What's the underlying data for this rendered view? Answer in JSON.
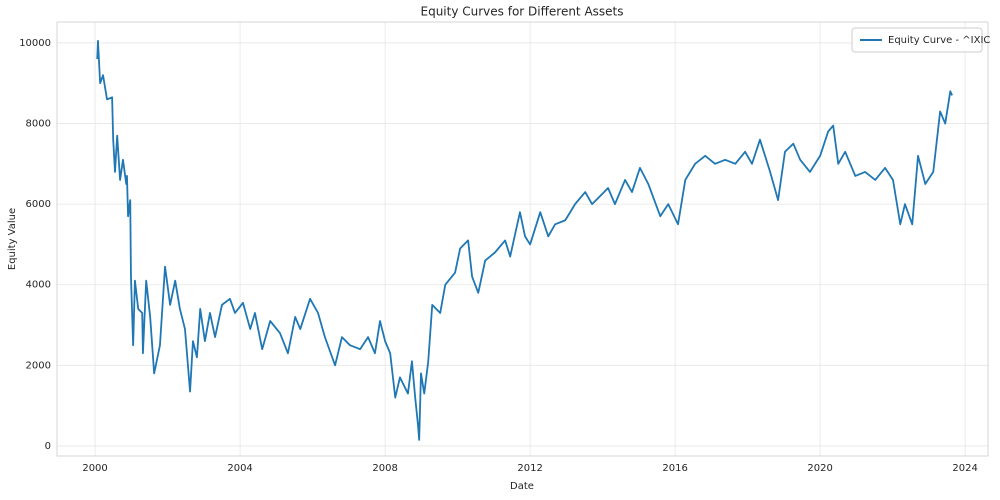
{
  "chart_data": {
    "type": "line",
    "title": "Equity Curves for Different Assets",
    "xlabel": "Date",
    "ylabel": "Equity Value",
    "x": [
      2000.06,
      2000.08,
      2000.14,
      2000.22,
      2000.33,
      2000.47,
      2000.5,
      2000.55,
      2000.61,
      2000.69,
      2000.77,
      2000.86,
      2000.88,
      2000.91,
      2000.97,
      2000.99,
      2001.05,
      2001.1,
      2001.19,
      2001.3,
      2001.32,
      2001.41,
      2001.52,
      2001.63,
      2001.79,
      2001.93,
      2002.07,
      2002.21,
      2002.34,
      2002.48,
      2002.62,
      2002.7,
      2002.81,
      2002.9,
      2003.03,
      2003.17,
      2003.31,
      2003.5,
      2003.72,
      2003.86,
      2004.08,
      2004.28,
      2004.41,
      2004.61,
      2004.83,
      2005.1,
      2005.32,
      2005.52,
      2005.66,
      2005.93,
      2006.15,
      2006.34,
      2006.62,
      2006.81,
      2007.03,
      2007.31,
      2007.53,
      2007.72,
      2007.86,
      2008.0,
      2008.14,
      2008.28,
      2008.41,
      2008.63,
      2008.74,
      2008.83,
      2008.91,
      2008.94,
      2008.99,
      2009.08,
      2009.19,
      2009.3,
      2009.52,
      2009.66,
      2009.93,
      2010.07,
      2010.29,
      2010.4,
      2010.57,
      2010.76,
      2011.03,
      2011.31,
      2011.45,
      2011.72,
      2011.86,
      2012.0,
      2012.28,
      2012.5,
      2012.69,
      2012.97,
      2013.24,
      2013.52,
      2013.71,
      2013.93,
      2014.15,
      2014.34,
      2014.62,
      2014.81,
      2015.03,
      2015.26,
      2015.59,
      2015.81,
      2016.08,
      2016.28,
      2016.55,
      2016.83,
      2017.1,
      2017.38,
      2017.66,
      2017.93,
      2018.12,
      2018.34,
      2018.62,
      2018.84,
      2019.03,
      2019.26,
      2019.45,
      2019.72,
      2020.0,
      2020.22,
      2020.36,
      2020.5,
      2020.69,
      2020.97,
      2021.24,
      2021.52,
      2021.79,
      2022.01,
      2022.21,
      2022.34,
      2022.54,
      2022.7,
      2022.9,
      2023.12,
      2023.31,
      2023.45,
      2023.59,
      2023.64
    ],
    "series": [
      {
        "name": "Equity Curve - ^IXIC",
        "color": "#1f77b4",
        "values": [
          9600,
          10050,
          9000,
          9200,
          8600,
          8650,
          7600,
          6800,
          7700,
          6600,
          7100,
          6500,
          6700,
          5700,
          6100,
          4200,
          2500,
          4100,
          3400,
          3300,
          2300,
          4100,
          3200,
          1800,
          2500,
          4450,
          3500,
          4100,
          3400,
          2900,
          1350,
          2600,
          2200,
          3400,
          2600,
          3300,
          2700,
          3500,
          3650,
          3300,
          3550,
          2900,
          3300,
          2400,
          3100,
          2800,
          2300,
          3200,
          2900,
          3650,
          3300,
          2700,
          2000,
          2700,
          2500,
          2400,
          2700,
          2300,
          3100,
          2600,
          2300,
          1200,
          1700,
          1300,
          2100,
          1200,
          500,
          150,
          1800,
          1300,
          2100,
          3500,
          3300,
          4000,
          4300,
          4900,
          5100,
          4200,
          3800,
          4600,
          4800,
          5100,
          4700,
          5800,
          5200,
          5000,
          5800,
          5200,
          5500,
          5600,
          6000,
          6300,
          6000,
          6200,
          6400,
          6000,
          6600,
          6300,
          6900,
          6500,
          5700,
          6000,
          5500,
          6600,
          7000,
          7200,
          7000,
          7100,
          7000,
          7300,
          7000,
          7600,
          6800,
          6100,
          7300,
          7500,
          7100,
          6800,
          7200,
          7800,
          7950,
          7000,
          7300,
          6700,
          6800,
          6600,
          6900,
          6600,
          5500,
          6000,
          5500,
          7200,
          6500,
          6800,
          8300,
          8000,
          8800,
          8700
        ]
      }
    ],
    "xlim": [
      1998.95,
      2024.63
    ],
    "xticks": [
      2000,
      2004,
      2008,
      2012,
      2016,
      2020,
      2024
    ],
    "ylim": [
      -250,
      10520
    ],
    "yticks": [
      0,
      2000,
      4000,
      6000,
      8000,
      10000
    ],
    "grid": true,
    "legend": "upper right"
  }
}
